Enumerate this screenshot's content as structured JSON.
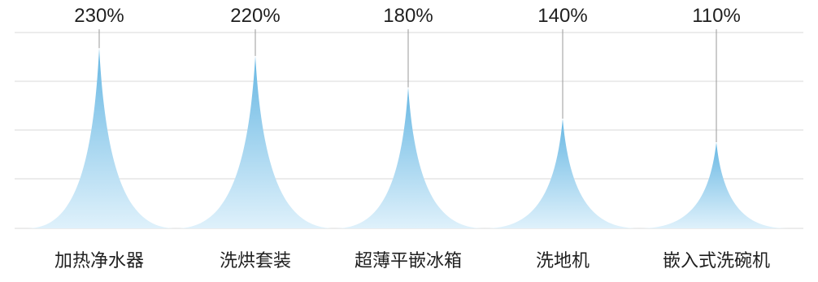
{
  "chart_data": {
    "type": "area",
    "categories": [
      "加热净水器",
      "洗烘套装",
      "超薄平嵌冰箱",
      "洗地机",
      "嵌入式洗碗机"
    ],
    "values": [
      230,
      220,
      180,
      140,
      110
    ],
    "value_labels": [
      "230%",
      "220%",
      "180%",
      "140%",
      "110%"
    ],
    "ylim": [
      0,
      250
    ],
    "grid": true,
    "legend": "none",
    "colors": {
      "peak_top": "#67b7e3",
      "peak_bottom": "#dff1fb",
      "grid": "#d9d9d9",
      "leader": "#9a9a9a"
    }
  }
}
